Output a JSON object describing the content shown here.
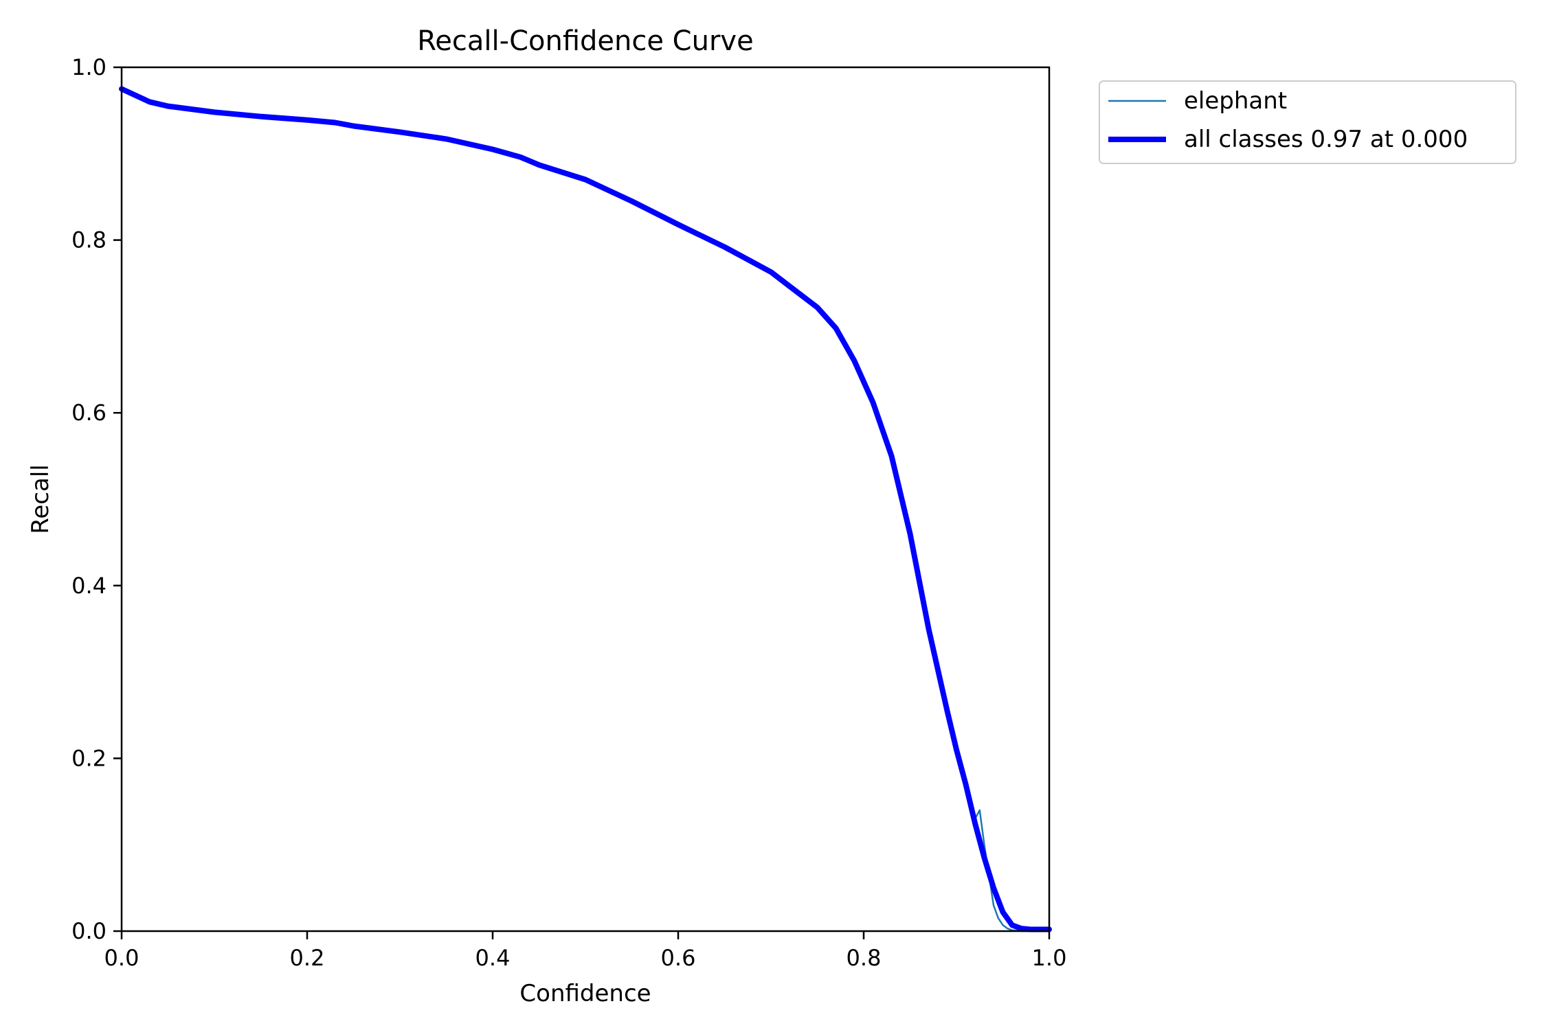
{
  "chart_data": {
    "type": "line",
    "title": "Recall-Confidence Curve",
    "xlabel": "Confidence",
    "ylabel": "Recall",
    "xlim": [
      0,
      1
    ],
    "ylim": [
      0,
      1
    ],
    "xticks": [
      "0.0",
      "0.2",
      "0.4",
      "0.6",
      "0.8",
      "1.0"
    ],
    "yticks": [
      "0.0",
      "0.2",
      "0.4",
      "0.6",
      "0.8",
      "1.0"
    ],
    "grid": false,
    "legend_position": "outside top-right",
    "series": [
      {
        "name": "elephant",
        "color": "#1f77b4",
        "style": "thin",
        "x": [
          0.0,
          0.03,
          0.05,
          0.1,
          0.15,
          0.2,
          0.23,
          0.25,
          0.3,
          0.35,
          0.4,
          0.43,
          0.45,
          0.5,
          0.55,
          0.6,
          0.65,
          0.7,
          0.75,
          0.77,
          0.79,
          0.81,
          0.83,
          0.85,
          0.87,
          0.89,
          0.9,
          0.91,
          0.92,
          0.925,
          0.93,
          0.935,
          0.94,
          0.945,
          0.95,
          0.955,
          0.96,
          0.97,
          0.98,
          1.0
        ],
        "y": [
          0.975,
          0.96,
          0.955,
          0.948,
          0.943,
          0.939,
          0.936,
          0.932,
          0.925,
          0.917,
          0.905,
          0.896,
          0.887,
          0.87,
          0.845,
          0.818,
          0.792,
          0.763,
          0.722,
          0.698,
          0.66,
          0.612,
          0.55,
          0.46,
          0.35,
          0.255,
          0.21,
          0.17,
          0.13,
          0.14,
          0.1,
          0.065,
          0.03,
          0.015,
          0.007,
          0.003,
          0.001,
          0.0,
          0.0,
          0.0
        ]
      },
      {
        "name": "all classes 0.97 at 0.000",
        "color": "#0000ff",
        "style": "thick",
        "x": [
          0.0,
          0.03,
          0.05,
          0.1,
          0.15,
          0.2,
          0.23,
          0.25,
          0.3,
          0.35,
          0.4,
          0.43,
          0.45,
          0.5,
          0.55,
          0.6,
          0.65,
          0.7,
          0.75,
          0.77,
          0.79,
          0.81,
          0.83,
          0.85,
          0.87,
          0.89,
          0.9,
          0.91,
          0.92,
          0.93,
          0.94,
          0.95,
          0.96,
          0.97,
          0.98,
          1.0
        ],
        "y": [
          0.975,
          0.96,
          0.955,
          0.948,
          0.943,
          0.939,
          0.936,
          0.932,
          0.925,
          0.917,
          0.905,
          0.896,
          0.887,
          0.87,
          0.845,
          0.818,
          0.792,
          0.763,
          0.722,
          0.698,
          0.66,
          0.612,
          0.55,
          0.46,
          0.35,
          0.255,
          0.21,
          0.17,
          0.125,
          0.085,
          0.05,
          0.022,
          0.007,
          0.003,
          0.002,
          0.002
        ]
      }
    ]
  }
}
